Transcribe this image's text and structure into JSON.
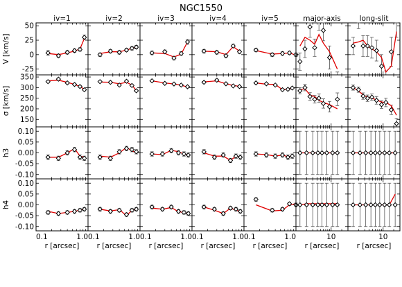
{
  "chart_data": {
    "type": "scatter",
    "title": "NGC1550",
    "columns": [
      "iv=1",
      "iv=2",
      "iv=3",
      "iv=4",
      "iv=5",
      "major-axis",
      "long-slit"
    ],
    "rows": [
      {
        "ylabel": "V [km/s]",
        "ylim": [
          -35,
          55
        ],
        "ticks": [
          -25,
          0,
          25,
          50
        ],
        "tick_labels": [
          "-25",
          "0",
          "25",
          "50"
        ]
      },
      {
        "ylabel": "σ [km/s]",
        "ylim": [
          115,
          360
        ],
        "ticks": [
          150,
          200,
          250,
          300,
          350
        ],
        "tick_labels": [
          "150",
          "200",
          "250",
          "300",
          "350"
        ]
      },
      {
        "ylabel": "h3",
        "ylim": [
          -0.12,
          0.12
        ],
        "ticks": [
          -0.1,
          -0.05,
          0.0,
          0.05,
          0.1
        ],
        "tick_labels": [
          "-0.10",
          "-0.05",
          "0.00",
          "0.05",
          "0.10"
        ]
      },
      {
        "ylabel": "h4",
        "ylim": [
          -0.12,
          0.12
        ],
        "ticks": [
          -0.1,
          -0.05,
          0.0,
          0.05,
          0.1
        ],
        "tick_labels": [
          "-0.10",
          "-0.05",
          "0.00",
          "0.05",
          "0.10"
        ]
      }
    ],
    "xlabel": "r [arcsec]",
    "x_scale": "log",
    "xlim_inner": [
      0.1,
      1.0
    ],
    "xlim_outer": [
      1,
      30
    ],
    "xticks_inner": [
      0.1,
      1.0
    ],
    "xtick_labels_inner": [
      "0.1",
      "1.0"
    ],
    "xticks_outer": [
      10
    ],
    "xtick_labels_outer": [
      "10"
    ],
    "iv_x": [
      0.17,
      0.27,
      0.42,
      0.62,
      0.82
    ],
    "major_x": [
      1.4,
      2.1,
      3.0,
      4.3,
      6.0,
      9.0,
      14.0
    ],
    "long_x": [
      1.5,
      2.4,
      3.4,
      4.9,
      7.3,
      11.0,
      16.0,
      24.0
    ],
    "panels": [
      [
        {
          "y": [
            3,
            -2,
            4,
            7,
            9,
            30
          ],
          "err": [
            4,
            3,
            3,
            3,
            3,
            4
          ],
          "x": [
            0.17,
            0.27,
            0.4,
            0.55,
            0.7,
            0.85
          ],
          "model": [
            2,
            0,
            3,
            6,
            10,
            28
          ]
        },
        {
          "y": [
            328,
            340,
            322,
            315,
            305,
            290
          ],
          "err": [
            5,
            5,
            4,
            4,
            4,
            5
          ],
          "x": [
            0.17,
            0.27,
            0.4,
            0.55,
            0.7,
            0.85
          ],
          "model": [
            332,
            335,
            325,
            315,
            305,
            292
          ]
        },
        {
          "y": [
            -0.02,
            -0.025,
            0.0,
            0.015,
            -0.02,
            -0.025
          ],
          "err": [
            0.01,
            0.01,
            0.01,
            0.01,
            0.01,
            0.01
          ],
          "x": [
            0.17,
            0.27,
            0.4,
            0.55,
            0.7,
            0.85
          ],
          "model": [
            -0.02,
            -0.02,
            0.0,
            0.02,
            -0.015,
            -0.02
          ]
        },
        {
          "y": [
            -0.035,
            -0.04,
            -0.035,
            -0.03,
            -0.025,
            -0.02
          ],
          "err": [
            0.008,
            0.008,
            0.008,
            0.008,
            0.008,
            0.008
          ],
          "x": [
            0.17,
            0.27,
            0.4,
            0.55,
            0.7,
            0.85
          ],
          "model": [
            -0.03,
            -0.04,
            -0.035,
            -0.03,
            -0.025,
            -0.02
          ]
        }
      ],
      [
        {
          "y": [
            0,
            6,
            4,
            8,
            11,
            13
          ],
          "err": [
            3,
            3,
            3,
            3,
            3,
            3
          ],
          "x": [
            0.17,
            0.27,
            0.4,
            0.55,
            0.7,
            0.85
          ],
          "model": [
            2,
            5,
            5,
            8,
            11,
            13
          ]
        },
        {
          "y": [
            328,
            325,
            312,
            330,
            310,
            285
          ],
          "err": [
            4,
            4,
            4,
            4,
            4,
            4
          ],
          "x": [
            0.17,
            0.27,
            0.4,
            0.55,
            0.7,
            0.85
          ],
          "model": [
            326,
            325,
            318,
            325,
            312,
            286
          ]
        },
        {
          "y": [
            -0.02,
            -0.025,
            0.005,
            0.02,
            0.015,
            0.005
          ],
          "err": [
            0.01,
            0.01,
            0.01,
            0.01,
            0.01,
            0.01
          ],
          "x": [
            0.17,
            0.27,
            0.4,
            0.55,
            0.7,
            0.85
          ],
          "model": [
            -0.015,
            -0.02,
            0.0,
            0.025,
            0.01,
            0.0
          ]
        },
        {
          "y": [
            -0.02,
            -0.03,
            -0.025,
            -0.045,
            -0.025,
            -0.02
          ],
          "err": [
            0.008,
            0.008,
            0.008,
            0.008,
            0.008,
            0.008
          ],
          "x": [
            0.17,
            0.27,
            0.4,
            0.55,
            0.7,
            0.85
          ],
          "model": [
            -0.02,
            -0.028,
            -0.022,
            -0.05,
            -0.025,
            -0.022
          ]
        }
      ],
      [
        {
          "y": [
            3,
            5,
            -6,
            2,
            22
          ],
          "err": [
            3,
            3,
            3,
            3,
            4
          ],
          "x": [
            0.17,
            0.3,
            0.45,
            0.62,
            0.82
          ],
          "model": [
            3,
            2,
            -4,
            1,
            22
          ]
        },
        {
          "y": [
            332,
            320,
            317,
            312,
            304
          ],
          "err": [
            4,
            4,
            4,
            4,
            4
          ],
          "x": [
            0.17,
            0.3,
            0.45,
            0.62,
            0.82
          ],
          "model": [
            332,
            322,
            317,
            311,
            303
          ]
        },
        {
          "y": [
            -0.005,
            -0.005,
            0.01,
            0.0,
            -0.005,
            -0.01
          ],
          "err": [
            0.01,
            0.01,
            0.01,
            0.01,
            0.01,
            0.01
          ],
          "x": [
            0.17,
            0.27,
            0.4,
            0.55,
            0.7,
            0.85
          ],
          "model": [
            -0.005,
            -0.008,
            0.012,
            0.005,
            -0.005,
            -0.012
          ]
        },
        {
          "y": [
            -0.01,
            -0.02,
            -0.01,
            -0.03,
            -0.035,
            -0.04
          ],
          "err": [
            0.008,
            0.008,
            0.008,
            0.008,
            0.008,
            0.008
          ],
          "x": [
            0.17,
            0.27,
            0.4,
            0.55,
            0.7,
            0.85
          ],
          "model": [
            -0.015,
            -0.02,
            -0.012,
            -0.032,
            -0.035,
            -0.04
          ]
        }
      ],
      [
        {
          "y": [
            6,
            4,
            -2,
            15,
            5
          ],
          "err": [
            3,
            3,
            3,
            3,
            3
          ],
          "x": [
            0.17,
            0.3,
            0.45,
            0.62,
            0.82
          ],
          "model": [
            6,
            5,
            0,
            14,
            6
          ]
        },
        {
          "y": [
            325,
            335,
            318,
            308,
            305
          ],
          "err": [
            4,
            4,
            4,
            4,
            4
          ],
          "x": [
            0.17,
            0.3,
            0.45,
            0.62,
            0.82
          ],
          "model": [
            327,
            332,
            318,
            310,
            306
          ]
        },
        {
          "y": [
            0.005,
            -0.02,
            -0.01,
            -0.035,
            -0.015,
            -0.02
          ],
          "err": [
            0.01,
            0.01,
            0.01,
            0.01,
            0.01,
            0.01
          ],
          "x": [
            0.17,
            0.27,
            0.4,
            0.55,
            0.7,
            0.85
          ],
          "model": [
            0.0,
            -0.015,
            -0.015,
            -0.035,
            -0.015,
            -0.02
          ]
        },
        {
          "y": [
            -0.01,
            -0.02,
            -0.04,
            -0.015,
            -0.02,
            -0.03
          ],
          "err": [
            0.008,
            0.008,
            0.008,
            0.008,
            0.008,
            0.008
          ],
          "x": [
            0.17,
            0.27,
            0.4,
            0.55,
            0.7,
            0.85
          ],
          "model": [
            -0.01,
            -0.025,
            -0.04,
            -0.015,
            -0.025,
            -0.03
          ]
        }
      ],
      [
        {
          "y": [
            8,
            0,
            2,
            3,
            0
          ],
          "err": [
            3,
            3,
            3,
            3,
            3
          ],
          "x": [
            0.17,
            0.35,
            0.55,
            0.75,
            1.0
          ],
          "model": [
            7,
            1,
            2,
            3,
            -1
          ]
        },
        {
          "y": [
            322,
            318,
            312,
            290,
            292,
            298
          ],
          "err": [
            4,
            4,
            4,
            4,
            4,
            4
          ],
          "x": [
            0.17,
            0.27,
            0.4,
            0.55,
            0.7,
            0.85
          ],
          "model": [
            322,
            316,
            315,
            290,
            293,
            298
          ]
        },
        {
          "y": [
            -0.005,
            -0.01,
            -0.015,
            -0.01,
            -0.02,
            -0.015
          ],
          "err": [
            0.01,
            0.01,
            0.01,
            0.01,
            0.01,
            0.01
          ],
          "x": [
            0.17,
            0.27,
            0.4,
            0.55,
            0.7,
            0.85
          ],
          "model": [
            -0.005,
            -0.008,
            -0.015,
            -0.01,
            -0.018,
            -0.014
          ]
        },
        {
          "y": [
            0.025,
            -0.025,
            -0.02,
            0.005,
            0.0
          ],
          "err": [
            0.008,
            0.008,
            0.008,
            0.008,
            0.008
          ],
          "x": [
            0.17,
            0.35,
            0.55,
            0.75,
            1.0
          ],
          "model": [
            0.0,
            -0.028,
            -0.025,
            0.0,
            0.005
          ]
        }
      ],
      [
        {
          "y": [
            -12,
            10,
            48,
            12,
            60,
            42,
            -5,
            -60
          ],
          "err": [
            15,
            15,
            18,
            15,
            18,
            18,
            20,
            30
          ],
          "x": [
            1.3,
            1.8,
            2.5,
            3.4,
            4.5,
            6.0,
            9.0,
            15.0
          ],
          "model": [
            15,
            30,
            25,
            18,
            35,
            20,
            5,
            -25
          ]
        },
        {
          "y": [
            285,
            300,
            258,
            245,
            250,
            225,
            210,
            245
          ],
          "err": [
            15,
            15,
            18,
            18,
            20,
            22,
            25,
            30
          ],
          "x": [
            1.3,
            1.8,
            2.5,
            3.4,
            4.5,
            6.0,
            9.0,
            15.0
          ],
          "model": [
            290,
            295,
            265,
            258,
            240,
            230,
            220,
            200
          ]
        },
        {
          "y": [
            0,
            0,
            0,
            0,
            0,
            0,
            0,
            0
          ],
          "err": [
            0.1,
            0.1,
            0.1,
            0.1,
            0.1,
            0.1,
            0.1,
            0.1
          ],
          "x": [
            1.3,
            2.0,
            3.0,
            4.2,
            5.5,
            7.5,
            11.0,
            15.0
          ],
          "model": [
            0,
            0,
            0,
            0,
            0,
            0,
            0,
            0
          ]
        },
        {
          "y": [
            0,
            0,
            0,
            0,
            0,
            0,
            0,
            0
          ],
          "err": [
            0.1,
            0.1,
            0.1,
            0.1,
            0.1,
            0.1,
            0.1,
            0.1
          ],
          "x": [
            1.3,
            2.0,
            3.0,
            4.2,
            5.5,
            7.5,
            11.0,
            15.0
          ],
          "model": [
            0,
            0.005,
            0.005,
            0.005,
            0.005,
            0.005,
            0.005,
            0.005
          ]
        }
      ],
      [
        {
          "y": [
            15,
            60,
            15,
            15,
            12,
            7,
            -20,
            -50,
            5,
            60
          ],
          "err": [
            15,
            15,
            18,
            18,
            18,
            18,
            20,
            22,
            25,
            30
          ],
          "x": [
            1.4,
            2.0,
            2.7,
            3.6,
            4.8,
            6.5,
            9.0,
            12.0,
            17.0,
            24.0
          ],
          "model": [
            20,
            22,
            25,
            15,
            10,
            5,
            -5,
            -30,
            -20,
            40
          ]
        },
        {
          "y": [
            300,
            290,
            260,
            250,
            255,
            240,
            220,
            230,
            195,
            130
          ],
          "err": [
            12,
            12,
            15,
            15,
            15,
            18,
            18,
            20,
            22,
            25
          ],
          "x": [
            1.4,
            2.0,
            2.7,
            3.6,
            4.8,
            6.5,
            9.0,
            12.0,
            17.0,
            24.0
          ],
          "model": [
            300,
            285,
            265,
            255,
            250,
            242,
            232,
            230,
            215,
            170
          ]
        },
        {
          "y": [
            0,
            0,
            0,
            0,
            0,
            0,
            0,
            0,
            0
          ],
          "err": [
            0.1,
            0.1,
            0.1,
            0.1,
            0.1,
            0.1,
            0.1,
            0.1,
            0.1
          ],
          "x": [
            1.4,
            2.2,
            3.2,
            4.5,
            6.0,
            8.0,
            11.0,
            15.0,
            22.0
          ],
          "model": [
            0,
            0,
            0,
            0,
            0,
            0,
            0,
            0,
            0
          ]
        },
        {
          "y": [
            0,
            0,
            0,
            0,
            0,
            0,
            0,
            0,
            0
          ],
          "err": [
            0.1,
            0.1,
            0.1,
            0.1,
            0.1,
            0.1,
            0.1,
            0.1,
            0.1
          ],
          "x": [
            1.4,
            2.2,
            3.2,
            4.5,
            6.0,
            8.0,
            11.0,
            15.0,
            22.0
          ],
          "model": [
            0,
            0,
            0,
            0,
            0,
            0,
            0,
            0,
            0.05
          ]
        }
      ]
    ],
    "colors": {
      "model": "#e00000",
      "points": "#000000",
      "errorbars": "#555555"
    }
  }
}
